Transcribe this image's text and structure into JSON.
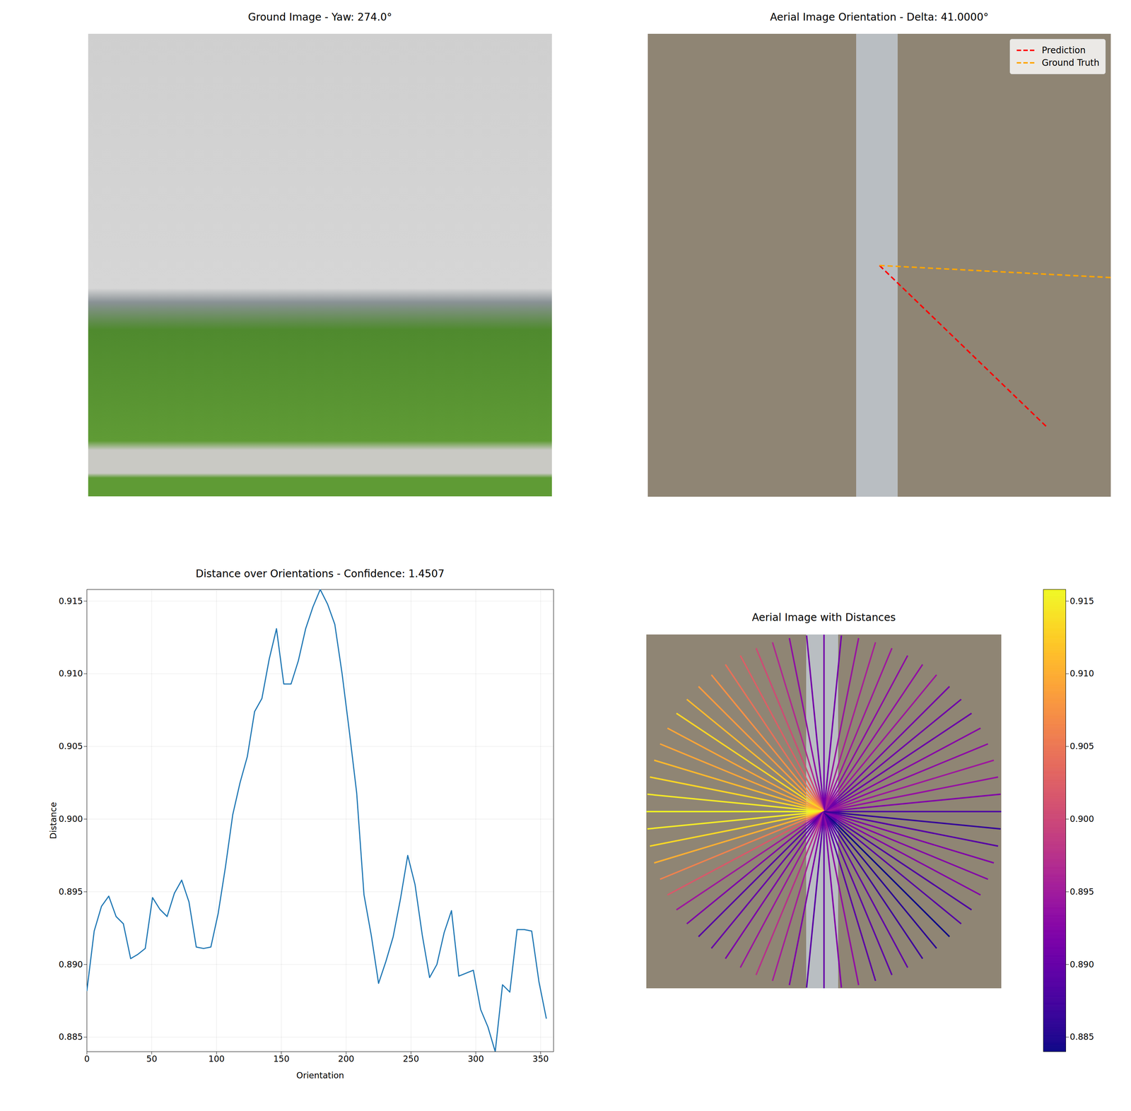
{
  "chart_data": [
    {
      "type": "image",
      "title": "Ground Image - Yaw: 274.0°"
    },
    {
      "type": "orientation",
      "title": "Aerial Image Orientation - Delta: 41.0000°",
      "legend": "upper right",
      "series": [
        {
          "name": "Prediction",
          "color": "#ff0000",
          "line_style": "dashed",
          "angle": 134
        },
        {
          "name": "Ground Truth",
          "color": "#ffa500",
          "line_style": "dashed",
          "angle": 93
        }
      ]
    },
    {
      "type": "line",
      "title": "Distance over Orientations - Confidence: 1.4507",
      "x_label": "Orientation",
      "y_label": "Distance",
      "color": "#1f77b4",
      "grid": true,
      "x": [
        0,
        5.625,
        11.25,
        16.875,
        22.5,
        28.125,
        33.75,
        39.375,
        45,
        50.625,
        56.25,
        61.875,
        67.5,
        73.125,
        78.75,
        84.375,
        90,
        95.625,
        101.25,
        106.875,
        112.5,
        118.125,
        123.75,
        129.375,
        135,
        140.625,
        146.25,
        151.875,
        157.5,
        163.125,
        168.75,
        174.375,
        180,
        185.625,
        191.25,
        196.875,
        202.5,
        208.125,
        213.75,
        219.375,
        225,
        230.625,
        236.25,
        241.875,
        247.5,
        253.125,
        258.75,
        264.375,
        270,
        275.625,
        281.25,
        286.875,
        292.5,
        298.125,
        303.75,
        309.375,
        315,
        320.625,
        326.25,
        331.875,
        337.5,
        343.125,
        348.75,
        354.375
      ],
      "values": [
        0.8882,
        0.8923,
        0.894,
        0.8947,
        0.8933,
        0.8928,
        0.8904,
        0.8907,
        0.8911,
        0.8946,
        0.8938,
        0.8933,
        0.8949,
        0.8958,
        0.8943,
        0.8912,
        0.8911,
        0.8912,
        0.8935,
        0.8967,
        0.9003,
        0.9025,
        0.9043,
        0.9074,
        0.9083,
        0.911,
        0.9131,
        0.9093,
        0.9093,
        0.9109,
        0.9131,
        0.9146,
        0.9158,
        0.9148,
        0.9134,
        0.91,
        0.906,
        0.9018,
        0.8948,
        0.892,
        0.8887,
        0.8902,
        0.8919,
        0.8945,
        0.8975,
        0.8955,
        0.892,
        0.8891,
        0.89,
        0.8922,
        0.8937,
        0.8892,
        0.8894,
        0.8896,
        0.8869,
        0.8857,
        0.884,
        0.8886,
        0.8881,
        0.8924,
        0.8924,
        0.8923,
        0.8888,
        0.8863
      ],
      "xlim": [
        0,
        360
      ],
      "xticks": [
        0,
        50,
        100,
        150,
        200,
        250,
        300,
        350
      ],
      "ylim": [
        0.884,
        0.9158
      ],
      "yticks": [
        0.885,
        {
          "value": 0.89,
          "label": "0.890"
        },
        0.895,
        {
          "value": 0.9,
          "label": "0.900"
        },
        0.905,
        {
          "value": 0.91,
          "label": "0.910"
        },
        0.915
      ]
    },
    {
      "type": "radial",
      "title": "Aerial Image with Distances",
      "x": [
        0,
        5.625,
        11.25,
        16.875,
        22.5,
        28.125,
        33.75,
        39.375,
        45,
        50.625,
        56.25,
        61.875,
        67.5,
        73.125,
        78.75,
        84.375,
        90,
        95.625,
        101.25,
        106.875,
        112.5,
        118.125,
        123.75,
        129.375,
        135,
        140.625,
        146.25,
        151.875,
        157.5,
        163.125,
        168.75,
        174.375,
        180,
        185.625,
        191.25,
        196.875,
        202.5,
        208.125,
        213.75,
        219.375,
        225,
        230.625,
        236.25,
        241.875,
        247.5,
        253.125,
        258.75,
        264.375,
        270,
        275.625,
        281.25,
        286.875,
        292.5,
        298.125,
        303.75,
        309.375,
        315,
        320.625,
        326.25,
        331.875,
        337.5,
        343.125,
        348.75,
        354.375
      ],
      "values": [
        0.8882,
        0.8923,
        0.894,
        0.8947,
        0.8933,
        0.8928,
        0.8904,
        0.8907,
        0.8911,
        0.8946,
        0.8938,
        0.8933,
        0.8949,
        0.8958,
        0.8943,
        0.8912,
        0.8911,
        0.8912,
        0.8935,
        0.8967,
        0.9003,
        0.9025,
        0.9043,
        0.9074,
        0.9083,
        0.911,
        0.9131,
        0.9093,
        0.9093,
        0.9109,
        0.9131,
        0.9146,
        0.9158,
        0.9148,
        0.9134,
        0.91,
        0.906,
        0.9018,
        0.8948,
        0.892,
        0.8887,
        0.8902,
        0.8919,
        0.8945,
        0.8975,
        0.8955,
        0.892,
        0.8891,
        0.89,
        0.8922,
        0.8937,
        0.8892,
        0.8894,
        0.8896,
        0.8869,
        0.8857,
        0.884,
        0.8886,
        0.8881,
        0.8924,
        0.8924,
        0.8923,
        0.8888,
        0.8863
      ],
      "colorbar": {
        "range": [
          0.884,
          0.9158
        ],
        "ticks": [
          0.885,
          {
            "value": 0.89,
            "label": "0.890"
          },
          0.895,
          {
            "value": 0.9,
            "label": "0.900"
          },
          0.905,
          {
            "value": 0.91,
            "label": "0.910"
          },
          0.915
        ]
      }
    }
  ]
}
